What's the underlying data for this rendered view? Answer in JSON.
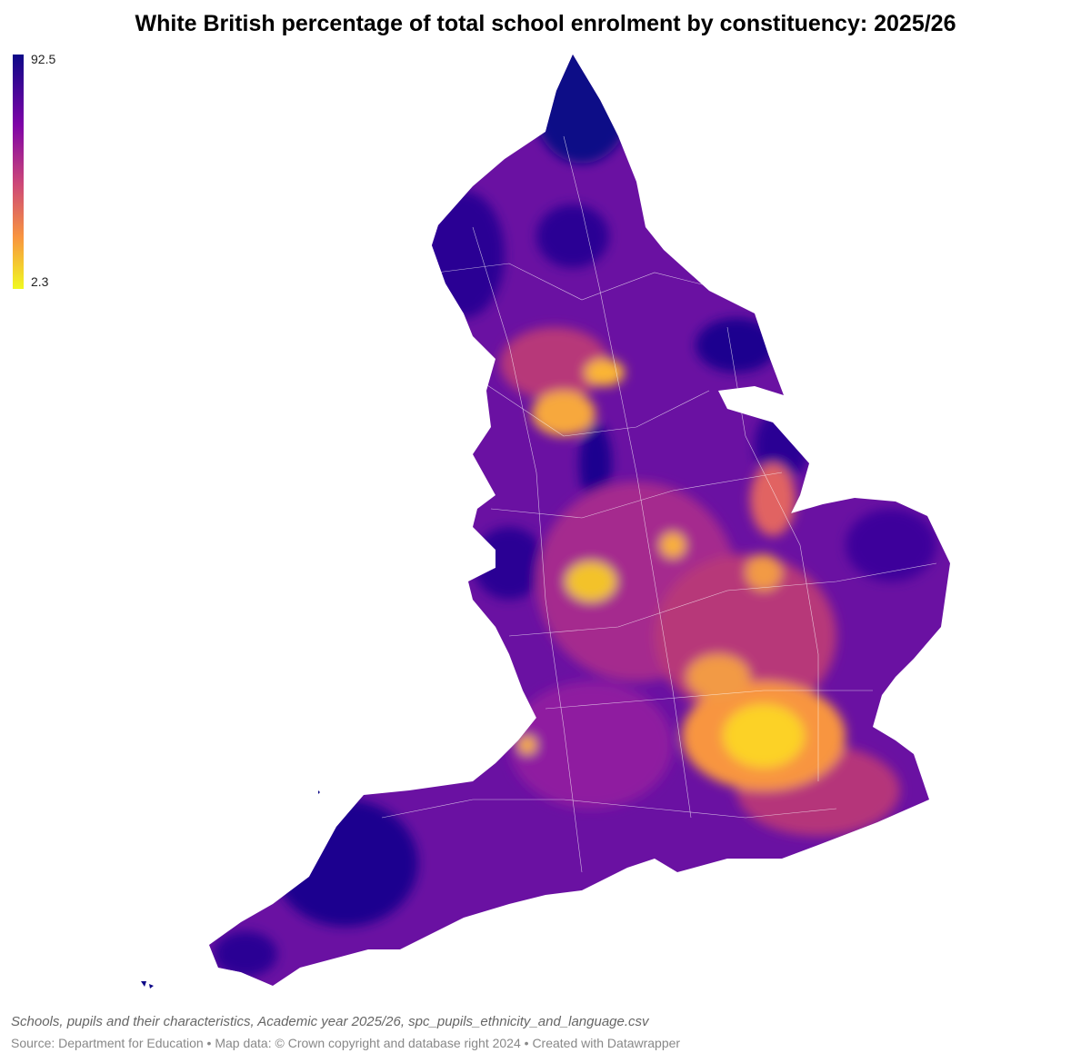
{
  "title": "White British percentage of total school enrolment by constituency: 2025/26",
  "legend": {
    "max": 92.5,
    "min": 2.3
  },
  "footer": {
    "note": "Schools, pupils and their characteristics, Academic year 2025/26, spc_pupils_ethnicity_and_language.csv",
    "source": "Source: Department for Education • Map data: © Crown copyright and database right 2024  • Created with Datawrapper"
  }
}
